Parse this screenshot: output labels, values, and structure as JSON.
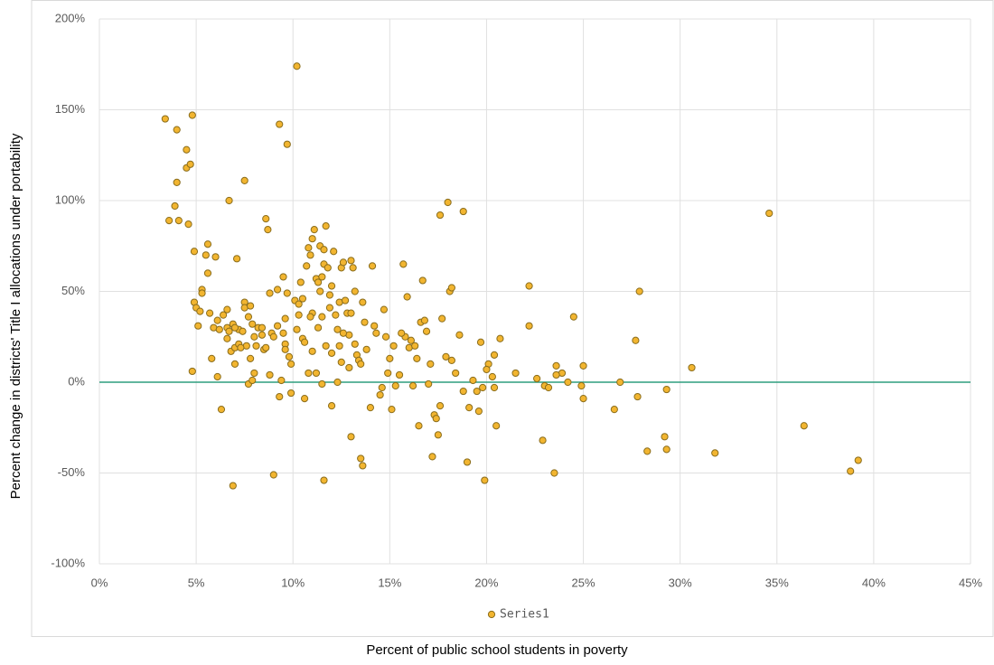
{
  "chart_data": {
    "type": "scatter",
    "x_label": "Percent of public school students in poverty",
    "y_label": "Percent change in districts' Title I allocations under portability",
    "xlim": [
      0,
      45
    ],
    "xticks": [
      {
        "value": 0,
        "label": "0%"
      },
      {
        "value": 5,
        "label": "5%"
      },
      {
        "value": 10,
        "label": "10%"
      },
      {
        "value": 15,
        "label": "15%"
      },
      {
        "value": 20,
        "label": "20%"
      },
      {
        "value": 25,
        "label": "25%"
      },
      {
        "value": 30,
        "label": "30%"
      },
      {
        "value": 35,
        "label": "35%"
      },
      {
        "value": 40,
        "label": "40%"
      },
      {
        "value": 45,
        "label": "45%"
      }
    ],
    "ylim": [
      -100,
      200
    ],
    "yticks": [
      {
        "value": -100,
        "label": "-100%"
      },
      {
        "value": -50,
        "label": "-50%"
      },
      {
        "value": 0,
        "label": "0%"
      },
      {
        "value": 50,
        "label": "50%"
      },
      {
        "value": 100,
        "label": "100%"
      },
      {
        "value": 150,
        "label": "150%"
      },
      {
        "value": 200,
        "label": "200%"
      }
    ],
    "grid": true,
    "axis_color": "#2e9e7e",
    "legend": "bottom",
    "series": [
      {
        "name": "Series1",
        "color": "#f2b530",
        "x": [
          3.4,
          4.8,
          4.0,
          4.5,
          4.5,
          4.7,
          4.0,
          3.9,
          3.6,
          4.1,
          4.6,
          4.9,
          4.9,
          5.0,
          5.2,
          5.1,
          4.8,
          5.3,
          5.3,
          5.6,
          5.5,
          5.6,
          5.7,
          5.9,
          6.1,
          6.0,
          6.2,
          6.1,
          6.3,
          6.4,
          6.6,
          6.6,
          6.7,
          6.6,
          6.8,
          6.9,
          7.0,
          7.1,
          7.0,
          7.2,
          7.2,
          7.4,
          7.5,
          7.5,
          7.5,
          7.7,
          7.8,
          7.6,
          7.8,
          7.7,
          7.9,
          7.9,
          8.0,
          8.1,
          8.2,
          8.4,
          8.4,
          8.5,
          8.6,
          8.7,
          8.6,
          8.8,
          8.8,
          8.9,
          9.0,
          9.0,
          9.2,
          9.3,
          9.2,
          9.3,
          9.4,
          9.5,
          9.5,
          9.6,
          9.6,
          9.6,
          9.7,
          9.8,
          9.7,
          9.9,
          9.9,
          6.9,
          8.0,
          7.3,
          7.0,
          6.7,
          5.8,
          10.2,
          10.1,
          10.3,
          10.3,
          10.2,
          10.4,
          10.5,
          10.6,
          10.6,
          10.7,
          10.8,
          10.9,
          11.0,
          11.1,
          11.2,
          11.0,
          11.3,
          11.4,
          11.5,
          11.6,
          11.6,
          11.5,
          11.4,
          11.7,
          11.6,
          11.7,
          11.8,
          11.9,
          11.9,
          12.0,
          12.0,
          12.1,
          12.2,
          12.3,
          12.4,
          12.4,
          12.5,
          12.6,
          12.7,
          12.8,
          12.9,
          13.0,
          13.0,
          13.1,
          13.2,
          13.3,
          13.4,
          13.5,
          13.6,
          13.6,
          13.7,
          13.8,
          14.0,
          14.1,
          14.2,
          14.3,
          14.5,
          14.6,
          14.7,
          14.8,
          14.9,
          10.8,
          11.2,
          11.5,
          12.3,
          12.5,
          12.9,
          13.2,
          13.5,
          10.5,
          10.9,
          11.3,
          12.0,
          12.6,
          13.0,
          11.0,
          15.1,
          15.2,
          15.3,
          15.5,
          15.7,
          15.8,
          15.9,
          16.0,
          16.1,
          16.2,
          16.3,
          16.5,
          16.6,
          16.7,
          16.8,
          16.9,
          17.0,
          17.1,
          17.2,
          17.3,
          17.4,
          17.5,
          17.6,
          17.6,
          17.7,
          18.0,
          18.1,
          18.2,
          18.4,
          18.6,
          18.8,
          18.8,
          19.0,
          19.1,
          19.3,
          19.5,
          19.6,
          19.8,
          19.9,
          20.1,
          20.3,
          20.4,
          20.5,
          20.7,
          15.0,
          15.6,
          16.4,
          17.9,
          18.2,
          19.7,
          20.0,
          20.4,
          21.5,
          22.2,
          22.2,
          22.6,
          22.9,
          23.0,
          23.2,
          23.5,
          23.6,
          23.9,
          24.2,
          24.5,
          25.0,
          25.0,
          24.9,
          26.6,
          26.9,
          27.7,
          27.9,
          27.8,
          28.3,
          29.2,
          29.3,
          29.3,
          30.6,
          31.8,
          34.6,
          36.4,
          38.8,
          39.2,
          23.6
        ],
        "values": [
          145,
          147,
          139,
          128,
          118,
          120,
          110,
          97,
          89,
          89,
          87,
          72,
          44,
          41,
          39,
          31,
          6,
          51,
          49,
          76,
          70,
          60,
          38,
          30,
          34,
          69,
          29,
          3,
          -15,
          37,
          40,
          30,
          100,
          24,
          17,
          32,
          19,
          68,
          10,
          29,
          21,
          28,
          111,
          44,
          41,
          36,
          42,
          20,
          13,
          -1,
          1,
          32,
          25,
          20,
          30,
          30,
          26,
          18,
          90,
          84,
          19,
          49,
          4,
          27,
          -51,
          25,
          31,
          142,
          51,
          -8,
          1,
          27,
          58,
          35,
          21,
          18,
          131,
          14,
          49,
          10,
          -6,
          -57,
          5,
          19,
          30,
          28,
          13,
          174,
          45,
          43,
          37,
          29,
          55,
          24,
          22,
          -9,
          64,
          74,
          70,
          79,
          84,
          57,
          38,
          55,
          75,
          58,
          65,
          73,
          36,
          50,
          86,
          -54,
          20,
          63,
          48,
          41,
          53,
          -13,
          72,
          37,
          29,
          20,
          44,
          63,
          66,
          45,
          38,
          26,
          67,
          -30,
          63,
          50,
          15,
          12,
          -42,
          -46,
          44,
          33,
          18,
          -14,
          64,
          31,
          27,
          -7,
          -3,
          40,
          25,
          5,
          5,
          5,
          -1,
          0,
          11,
          8,
          21,
          10,
          46,
          36,
          30,
          16,
          27,
          38,
          17,
          -15,
          20,
          -2,
          4,
          65,
          25,
          47,
          19,
          23,
          -2,
          20,
          -24,
          33,
          56,
          34,
          28,
          -1,
          10,
          -41,
          -18,
          -20,
          -29,
          -13,
          92,
          35,
          99,
          50,
          52,
          5,
          26,
          94,
          -5,
          -44,
          -14,
          1,
          -5,
          -16,
          -3,
          -54,
          10,
          3,
          -3,
          -24,
          24,
          13,
          27,
          13,
          14,
          12,
          22,
          7,
          15,
          5,
          53,
          31,
          2,
          -32,
          -2,
          -3,
          -50,
          9,
          5,
          0,
          36,
          9,
          -9,
          -2,
          -15,
          0,
          23,
          50,
          -8,
          -38,
          -30,
          -37,
          -4,
          8,
          -39,
          93,
          -24,
          -49,
          -43,
          4
        ]
      }
    ]
  }
}
